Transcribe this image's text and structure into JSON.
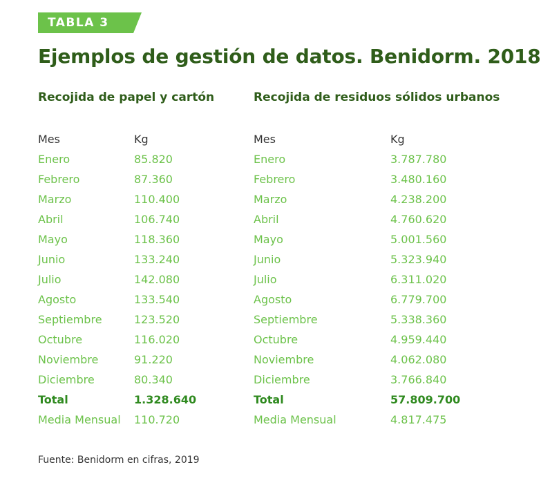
{
  "badge": {
    "label": "TABLA 3"
  },
  "title": "Ejemplos de gestión de datos. Benidorm. 2018",
  "colors": {
    "badge": "#6cc24a",
    "title": "#2f5d1a",
    "data_text": "#6cc24a",
    "total_text": "#2f8a1f",
    "header_text": "#333333"
  },
  "left": {
    "section_title": "Recojida de papel y cartón",
    "header": {
      "month": "Mes",
      "value": "Kg"
    },
    "rows": [
      {
        "month": "Enero",
        "value": "85.820"
      },
      {
        "month": "Febrero",
        "value": "87.360"
      },
      {
        "month": "Marzo",
        "value": "110.400"
      },
      {
        "month": "Abril",
        "value": "106.740"
      },
      {
        "month": "Mayo",
        "value": "118.360"
      },
      {
        "month": "Junio",
        "value": "133.240"
      },
      {
        "month": "Julio",
        "value": "142.080"
      },
      {
        "month": "Agosto",
        "value": "133.540"
      },
      {
        "month": "Septiembre",
        "value": "123.520"
      },
      {
        "month": "Octubre",
        "value": "116.020"
      },
      {
        "month": "Noviembre",
        "value": "91.220"
      },
      {
        "month": "Diciembre",
        "value": "80.340"
      }
    ],
    "total": {
      "label": "Total",
      "value": "1.328.640"
    },
    "average": {
      "label": "Media Mensual",
      "value": "110.720"
    }
  },
  "right": {
    "section_title": "Recojida de residuos sólidos urbanos",
    "header": {
      "month": "Mes",
      "value": "Kg"
    },
    "rows": [
      {
        "month": "Enero",
        "value": "3.787.780"
      },
      {
        "month": "Febrero",
        "value": "3.480.160"
      },
      {
        "month": "Marzo",
        "value": "4.238.200"
      },
      {
        "month": "Abril",
        "value": "4.760.620"
      },
      {
        "month": "Mayo",
        "value": "5.001.560"
      },
      {
        "month": "Junio",
        "value": "5.323.940"
      },
      {
        "month": "Julio",
        "value": "6.311.020"
      },
      {
        "month": "Agosto",
        "value": "6.779.700"
      },
      {
        "month": "Septiembre",
        "value": "5.338.360"
      },
      {
        "month": "Octubre",
        "value": "4.959.440"
      },
      {
        "month": "Noviembre",
        "value": "4.062.080"
      },
      {
        "month": "Diciembre",
        "value": "3.766.840"
      }
    ],
    "total": {
      "label": "Total",
      "value": "57.809.700"
    },
    "average": {
      "label": "Media Mensual",
      "value": "4.817.475"
    }
  },
  "source": "Fuente: Benidorm en cifras, 2019"
}
